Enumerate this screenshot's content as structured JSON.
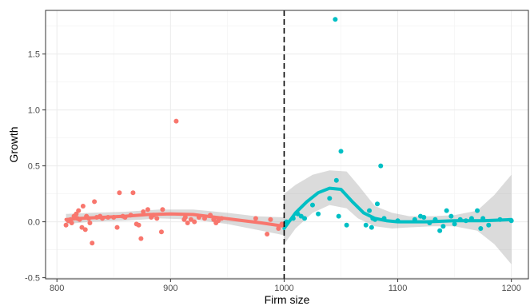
{
  "chart_data": {
    "type": "scatter",
    "title": "",
    "xlabel": "Firm size",
    "ylabel": "Growth",
    "xlim": [
      790,
      1215
    ],
    "ylim": [
      -0.51,
      1.89
    ],
    "x_ticks": [
      800,
      900,
      1000,
      1100,
      1200
    ],
    "x_tick_labels": [
      "800",
      "900",
      "1000",
      "1100",
      "1200"
    ],
    "y_ticks": [
      -0.5,
      0.0,
      0.5,
      1.0,
      1.5
    ],
    "y_tick_labels": [
      "-0.5",
      "0.0",
      "0.5",
      "1.0",
      "1.5"
    ],
    "grid": true,
    "cutoff": {
      "x": 1000,
      "style": "dashed"
    },
    "series": [
      {
        "color": "#F8766D",
        "points": [
          [
            808,
            -0.03
          ],
          [
            810,
            0.01
          ],
          [
            812,
            0.02
          ],
          [
            813,
            -0.01
          ],
          [
            815,
            0.05
          ],
          [
            817,
            0.07
          ],
          [
            818,
            0.03
          ],
          [
            819,
            0.1
          ],
          [
            820,
            0.02
          ],
          [
            822,
            -0.05
          ],
          [
            823,
            0.14
          ],
          [
            825,
            -0.07
          ],
          [
            826,
            0.05
          ],
          [
            828,
            0.03
          ],
          [
            829,
            -0.01
          ],
          [
            831,
            -0.19
          ],
          [
            833,
            0.18
          ],
          [
            835,
            0.04
          ],
          [
            838,
            0.05
          ],
          [
            840,
            0.03
          ],
          [
            845,
            0.04
          ],
          [
            850,
            0.04
          ],
          [
            853,
            -0.05
          ],
          [
            855,
            0.26
          ],
          [
            858,
            0.05
          ],
          [
            860,
            0.04
          ],
          [
            865,
            0.06
          ],
          [
            867,
            0.26
          ],
          [
            870,
            -0.02
          ],
          [
            872,
            -0.03
          ],
          [
            874,
            -0.15
          ],
          [
            876,
            0.09
          ],
          [
            880,
            0.11
          ],
          [
            883,
            0.04
          ],
          [
            885,
            0.06
          ],
          [
            888,
            0.03
          ],
          [
            892,
            -0.09
          ],
          [
            893,
            0.11
          ],
          [
            905,
            0.9
          ],
          [
            912,
            0.02
          ],
          [
            913,
            0.04
          ],
          [
            915,
            -0.01
          ],
          [
            918,
            0.02
          ],
          [
            921,
            0.0
          ],
          [
            925,
            0.04
          ],
          [
            930,
            0.03
          ],
          [
            935,
            0.06
          ],
          [
            938,
            0.02
          ],
          [
            940,
            -0.01
          ],
          [
            942,
            0.01
          ],
          [
            945,
            0.03
          ],
          [
            975,
            0.03
          ],
          [
            985,
            -0.11
          ],
          [
            988,
            0.02
          ],
          [
            995,
            -0.06
          ],
          [
            998,
            -0.02
          ]
        ],
        "smooth": [
          [
            808,
            0.02
          ],
          [
            820,
            0.03
          ],
          [
            840,
            0.04
          ],
          [
            860,
            0.05
          ],
          [
            880,
            0.065
          ],
          [
            900,
            0.07
          ],
          [
            920,
            0.065
          ],
          [
            940,
            0.04
          ],
          [
            960,
            0.015
          ],
          [
            980,
            -0.01
          ],
          [
            1000,
            -0.04
          ]
        ],
        "band": [
          [
            808,
            -0.02,
            0.07
          ],
          [
            830,
            0.0,
            0.08
          ],
          [
            860,
            0.01,
            0.09
          ],
          [
            890,
            0.03,
            0.11
          ],
          [
            920,
            0.02,
            0.11
          ],
          [
            950,
            -0.02,
            0.08
          ],
          [
            975,
            -0.07,
            0.05
          ],
          [
            1000,
            -0.12,
            0.04
          ]
        ]
      },
      {
        "color": "#00BFC4",
        "points": [
          [
            1002,
            0.0
          ],
          [
            1008,
            0.03
          ],
          [
            1012,
            0.07
          ],
          [
            1015,
            0.05
          ],
          [
            1018,
            0.03
          ],
          [
            1025,
            0.15
          ],
          [
            1030,
            0.07
          ],
          [
            1040,
            0.21
          ],
          [
            1045,
            1.81
          ],
          [
            1046,
            0.37
          ],
          [
            1048,
            0.05
          ],
          [
            1050,
            0.63
          ],
          [
            1055,
            -0.03
          ],
          [
            1072,
            -0.03
          ],
          [
            1075,
            0.1
          ],
          [
            1077,
            -0.05
          ],
          [
            1078,
            0.03
          ],
          [
            1080,
            0.02
          ],
          [
            1082,
            0.16
          ],
          [
            1085,
            0.5
          ],
          [
            1088,
            0.03
          ],
          [
            1100,
            0.01
          ],
          [
            1115,
            0.02
          ],
          [
            1120,
            0.05
          ],
          [
            1123,
            0.04
          ],
          [
            1128,
            -0.01
          ],
          [
            1133,
            0.02
          ],
          [
            1137,
            -0.08
          ],
          [
            1140,
            -0.04
          ],
          [
            1143,
            0.1
          ],
          [
            1147,
            0.05
          ],
          [
            1150,
            -0.02
          ],
          [
            1155,
            0.02
          ],
          [
            1160,
            0.01
          ],
          [
            1165,
            0.03
          ],
          [
            1170,
            0.1
          ],
          [
            1173,
            -0.06
          ],
          [
            1175,
            0.03
          ],
          [
            1180,
            -0.03
          ],
          [
            1190,
            0.02
          ],
          [
            1200,
            0.01
          ]
        ],
        "smooth": [
          [
            1000,
            -0.06
          ],
          [
            1010,
            0.08
          ],
          [
            1020,
            0.18
          ],
          [
            1030,
            0.26
          ],
          [
            1040,
            0.3
          ],
          [
            1050,
            0.29
          ],
          [
            1060,
            0.18
          ],
          [
            1070,
            0.08
          ],
          [
            1080,
            0.03
          ],
          [
            1090,
            0.01
          ],
          [
            1100,
            0.0
          ],
          [
            1125,
            0.0
          ],
          [
            1150,
            0.01
          ],
          [
            1175,
            0.01
          ],
          [
            1200,
            0.02
          ]
        ],
        "band": [
          [
            1000,
            -0.2,
            0.25
          ],
          [
            1010,
            -0.06,
            0.33
          ],
          [
            1025,
            0.08,
            0.42
          ],
          [
            1040,
            0.15,
            0.46
          ],
          [
            1055,
            0.12,
            0.45
          ],
          [
            1065,
            0.03,
            0.33
          ],
          [
            1080,
            -0.04,
            0.14
          ],
          [
            1095,
            -0.06,
            0.08
          ],
          [
            1110,
            -0.05,
            0.05
          ],
          [
            1130,
            -0.04,
            0.05
          ],
          [
            1150,
            -0.04,
            0.06
          ],
          [
            1170,
            -0.08,
            0.1
          ],
          [
            1185,
            -0.2,
            0.24
          ],
          [
            1200,
            -0.38,
            0.42
          ]
        ]
      }
    ]
  }
}
